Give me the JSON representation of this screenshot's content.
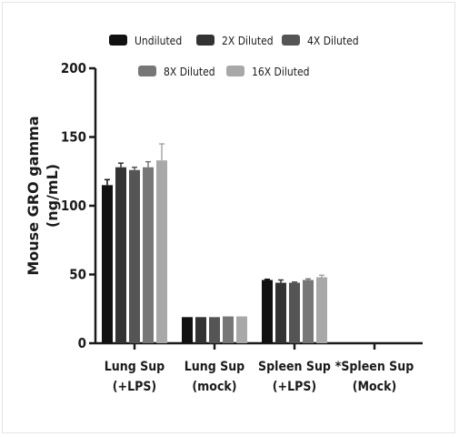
{
  "chart_data": {
    "type": "bar",
    "ylabel_line1": "Mouse GRO gamma",
    "ylabel_line2": "(ng/mL)",
    "ylim": [
      0,
      200
    ],
    "yticks": [
      0,
      50,
      100,
      150,
      200
    ],
    "grid": false,
    "legend_position": "top",
    "categories": [
      {
        "line1": "Lung  Sup",
        "line2": "(+LPS)"
      },
      {
        "line1": "Lung Sup",
        "line2": "(mock)"
      },
      {
        "line1": "Spleen Sup",
        "line2": "(+LPS)"
      },
      {
        "line1": "*Spleen Sup",
        "line2": "(Mock)"
      }
    ],
    "series": [
      {
        "name": "Undiluted",
        "color": "#111111",
        "values": [
          115,
          19,
          46,
          0
        ],
        "errors": [
          4,
          0,
          0.5,
          0
        ]
      },
      {
        "name": "2X Diluted",
        "color": "#333333",
        "values": [
          128,
          19,
          44,
          0
        ],
        "errors": [
          3,
          0,
          2,
          0
        ]
      },
      {
        "name": "4X Diluted",
        "color": "#555555",
        "values": [
          126,
          19,
          44,
          0
        ],
        "errors": [
          2,
          0,
          0.5,
          0
        ]
      },
      {
        "name": "8X Diluted",
        "color": "#777777",
        "values": [
          128,
          19.5,
          46,
          0
        ],
        "errors": [
          4,
          0,
          0.8,
          0
        ]
      },
      {
        "name": "16X Diluted",
        "color": "#a8a8a8",
        "values": [
          133,
          19.5,
          48,
          0
        ],
        "errors": [
          12,
          0,
          1.5,
          0
        ]
      }
    ]
  }
}
